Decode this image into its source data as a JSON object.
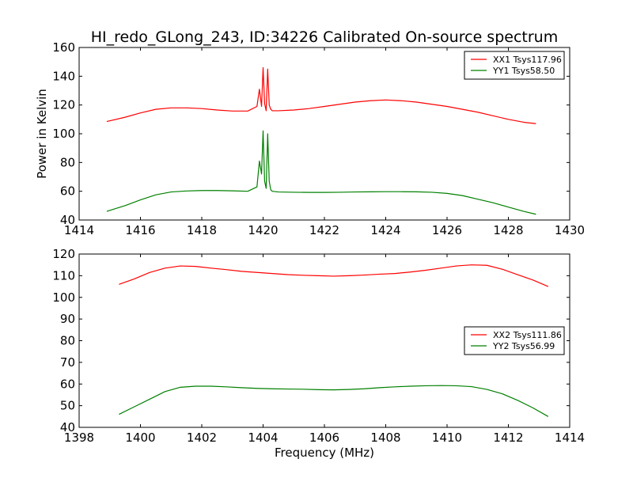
{
  "figure": {
    "title": "HI_redo_GLong_243, ID:34226 Calibrated On-source spectrum"
  },
  "chart_data": [
    {
      "type": "line",
      "title": "HI_redo_GLong_243, ID:34226 Calibrated On-source spectrum",
      "xlabel": "",
      "ylabel": "Power in Kelvin",
      "xlim": [
        1414,
        1430
      ],
      "ylim": [
        40,
        160
      ],
      "xticks": [
        "1414",
        "1416",
        "1418",
        "1420",
        "1422",
        "1424",
        "1426",
        "1428",
        "1430"
      ],
      "yticks": [
        "40",
        "60",
        "80",
        "100",
        "120",
        "140",
        "160"
      ],
      "grid": false,
      "legend": "top-right",
      "series": [
        {
          "name": "XX1 Tsys117.96",
          "color": "#ff0000",
          "x": [
            1414.9,
            1415.5,
            1416.0,
            1416.5,
            1417.0,
            1417.5,
            1418.0,
            1418.5,
            1419.0,
            1419.5,
            1419.8,
            1419.88,
            1419.95,
            1420.0,
            1420.05,
            1420.1,
            1420.15,
            1420.2,
            1420.25,
            1420.3,
            1420.5,
            1421.0,
            1421.5,
            1422.0,
            1422.5,
            1423.0,
            1423.5,
            1424.0,
            1424.5,
            1425.0,
            1425.5,
            1426.0,
            1426.5,
            1427.0,
            1427.5,
            1428.0,
            1428.5,
            1428.9
          ],
          "y": [
            108.5,
            111.5,
            114.5,
            117,
            118,
            118,
            117.5,
            116.5,
            115.8,
            115.8,
            119,
            131,
            119,
            146,
            121,
            116,
            145,
            120,
            117,
            116,
            116,
            116.5,
            117.5,
            119,
            120.5,
            122,
            123,
            123.5,
            123,
            122,
            120.5,
            119,
            117,
            115,
            112.5,
            110,
            108,
            107
          ]
        },
        {
          "name": "YY1 Tsys58.50",
          "color": "#008000",
          "x": [
            1414.9,
            1415.5,
            1416.0,
            1416.5,
            1417.0,
            1417.5,
            1418.0,
            1418.5,
            1419.0,
            1419.5,
            1419.8,
            1419.88,
            1419.95,
            1420.0,
            1420.05,
            1420.1,
            1420.15,
            1420.2,
            1420.25,
            1420.3,
            1420.5,
            1421.0,
            1421.5,
            1422.0,
            1422.5,
            1423.0,
            1423.5,
            1424.0,
            1424.5,
            1425.0,
            1425.5,
            1426.0,
            1426.5,
            1427.0,
            1427.5,
            1428.0,
            1428.5,
            1428.9
          ],
          "y": [
            46,
            50,
            54,
            57.5,
            59.5,
            60.2,
            60.5,
            60.5,
            60.3,
            60,
            63,
            81,
            72,
            102,
            67,
            62,
            100,
            67,
            61,
            60,
            59.5,
            59.3,
            59.2,
            59.2,
            59.3,
            59.5,
            59.6,
            59.7,
            59.7,
            59.6,
            59.3,
            58.5,
            57,
            54.5,
            52,
            49,
            46,
            44
          ]
        }
      ]
    },
    {
      "type": "line",
      "title": "",
      "xlabel": "Frequency (MHz)",
      "ylabel": "",
      "xlim": [
        1398,
        1414
      ],
      "ylim": [
        40,
        120
      ],
      "xticks": [
        "1398",
        "1400",
        "1402",
        "1404",
        "1406",
        "1408",
        "1410",
        "1412",
        "1414"
      ],
      "yticks": [
        "40",
        "50",
        "60",
        "70",
        "80",
        "90",
        "100",
        "110",
        "120"
      ],
      "grid": false,
      "legend": "center-right",
      "series": [
        {
          "name": "XX2 Tsys111.86",
          "color": "#ff0000",
          "x": [
            1399.3,
            1399.8,
            1400.3,
            1400.8,
            1401.3,
            1401.8,
            1402.3,
            1402.8,
            1403.3,
            1403.8,
            1404.3,
            1404.8,
            1405.3,
            1405.8,
            1406.3,
            1406.8,
            1407.3,
            1407.8,
            1408.3,
            1408.8,
            1409.3,
            1409.8,
            1410.3,
            1410.8,
            1411.3,
            1411.8,
            1412.3,
            1412.8,
            1413.3
          ],
          "y": [
            106,
            108.5,
            111.5,
            113.5,
            114.5,
            114.3,
            113.5,
            112.8,
            112,
            111.5,
            111,
            110.5,
            110.2,
            110,
            109.8,
            110,
            110.3,
            110.7,
            111,
            111.7,
            112.5,
            113.5,
            114.5,
            115,
            114.8,
            113,
            110.5,
            108,
            105
          ]
        },
        {
          "name": "YY2 Tsys56.99",
          "color": "#008000",
          "x": [
            1399.3,
            1399.8,
            1400.3,
            1400.8,
            1401.3,
            1401.8,
            1402.3,
            1402.8,
            1403.3,
            1403.8,
            1404.3,
            1404.8,
            1405.3,
            1405.8,
            1406.3,
            1406.8,
            1407.3,
            1407.8,
            1408.3,
            1408.8,
            1409.3,
            1409.8,
            1410.3,
            1410.8,
            1411.3,
            1411.8,
            1412.3,
            1412.8,
            1413.3
          ],
          "y": [
            46,
            49.5,
            53,
            56.5,
            58.5,
            59,
            59,
            58.7,
            58.3,
            58,
            57.8,
            57.7,
            57.6,
            57.4,
            57.3,
            57.5,
            57.8,
            58.3,
            58.7,
            59,
            59.2,
            59.3,
            59.2,
            58.8,
            57.5,
            55.5,
            52.5,
            49,
            45
          ]
        }
      ]
    }
  ]
}
